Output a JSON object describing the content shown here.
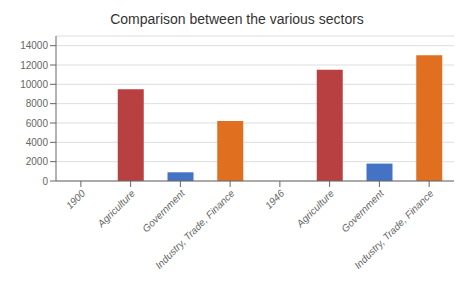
{
  "chart_data": {
    "type": "bar",
    "title": "Comparison between the various sectors",
    "categories": [
      "1900",
      "Agriculture",
      "Government",
      "Industry, Trade, Finance",
      "1946",
      "Agriculture",
      "Government",
      "Industry, Trade, Finance"
    ],
    "values": [
      null,
      9500,
      900,
      6200,
      null,
      11500,
      1800,
      13000
    ],
    "colors": [
      null,
      "#b94040",
      "#4472c4",
      "#e07020",
      null,
      "#b94040",
      "#4472c4",
      "#e07020"
    ],
    "ylim": [
      0,
      15000
    ],
    "yticks": [
      0,
      2000,
      4000,
      6000,
      8000,
      10000,
      12000,
      14000
    ],
    "grid": true
  }
}
